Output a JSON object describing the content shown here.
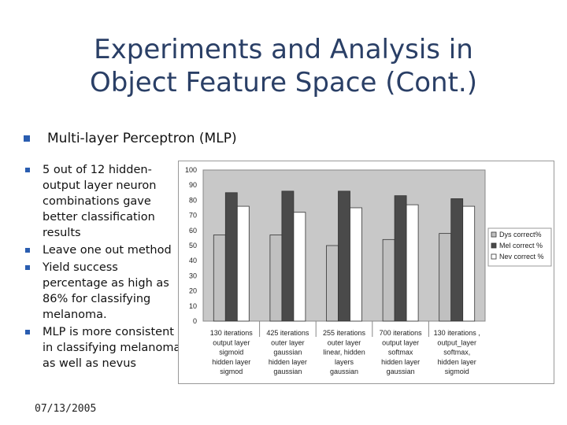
{
  "slide": {
    "title_line1": "Experiments and Analysis in",
    "title_line2": "Object Feature Space (Cont.)",
    "main_bullet": "Multi-layer Perceptron (MLP)",
    "bullets": [
      "5 out of 12 hidden-output layer neuron combinations gave better classification results",
      "Leave one out method",
      "Yield success percentage as high as 86% for classifying melanoma.",
      "MLP is more consistent in classifying melanoma as well as nevus"
    ],
    "date": "07/13/2005",
    "colors": {
      "title": "#2a3f66",
      "bullet": "#2a5db0"
    }
  },
  "chart_data": {
    "type": "bar",
    "categories": [
      [
        "130 iterations",
        "output layer",
        "sigmoid",
        "hidden layer",
        "sigmod"
      ],
      [
        "425 iterations",
        "outer layer",
        "gaussian",
        "hidden layer",
        "gaussian"
      ],
      [
        "255 iterations",
        "outer layer",
        "linear, hidden",
        "layers",
        "gaussian"
      ],
      [
        "700 iterations",
        "output layer",
        "softmax",
        "hidden layer",
        "gaussian"
      ],
      [
        "130 iterations ,",
        "output_layer",
        "softmax,",
        "hidden layer",
        "sigmoid"
      ]
    ],
    "series": [
      {
        "name": "Dys correct%",
        "values": [
          57,
          57,
          50,
          54,
          58
        ],
        "color": "#c0c0c0"
      },
      {
        "name": "Mel correct %",
        "values": [
          85,
          86,
          86,
          83,
          81
        ],
        "color": "#4a4a4a"
      },
      {
        "name": "Nev correct %",
        "values": [
          76,
          72,
          75,
          77,
          76
        ],
        "color": "#ffffff"
      }
    ],
    "yticks": [
      0,
      10,
      20,
      30,
      40,
      50,
      60,
      70,
      80,
      90,
      100
    ],
    "ylim": [
      0,
      100
    ],
    "grid": false,
    "legend": "right"
  }
}
